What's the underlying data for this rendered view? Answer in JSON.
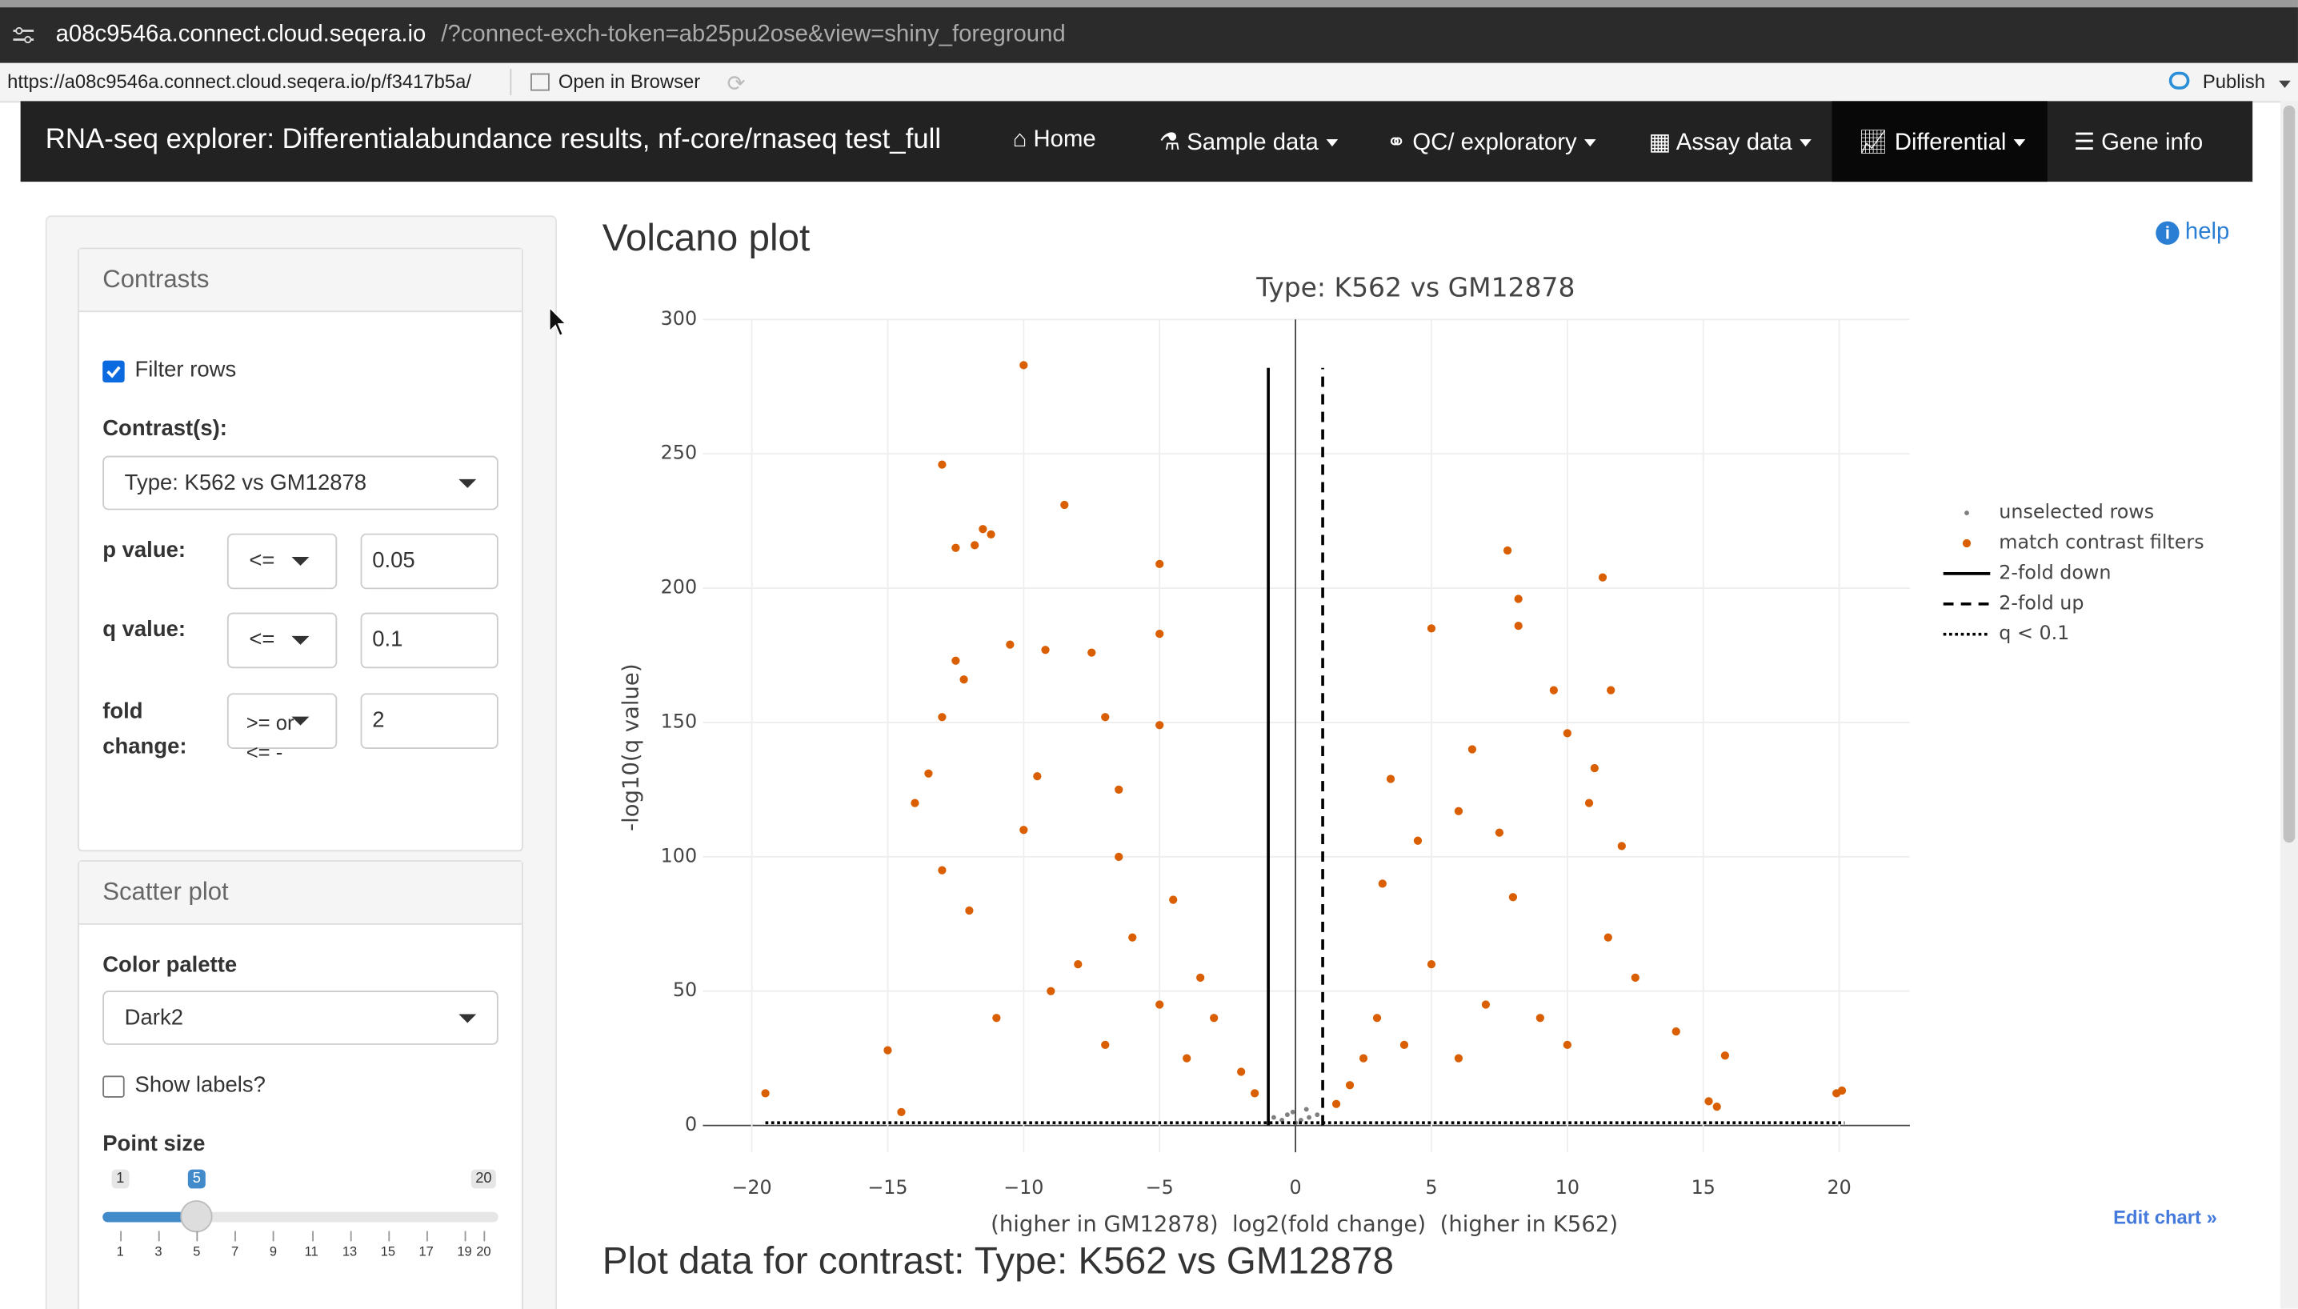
{
  "browser": {
    "url_host": "a08c9546a.connect.cloud.seqera.io",
    "url_rest": "/?connect-exch-token=ab25pu2ose&view=shiny_foreground",
    "content_url": "https://a08c9546a.connect.cloud.seqera.io/p/f3417b5a/",
    "open_in_browser": "Open in Browser",
    "publish": "Publish"
  },
  "navbar": {
    "title": "RNA-seq explorer: Differentialabundance results, nf-core/rnaseq test_full",
    "items": [
      "Home",
      "Sample data",
      "QC/ exploratory",
      "Assay data",
      "Differential",
      "Gene info"
    ]
  },
  "sidebar": {
    "contrasts": {
      "header": "Contrasts",
      "filter_rows": "Filter rows",
      "contrast_label": "Contrast(s):",
      "contrast_value": "Type: K562 vs GM12878",
      "p_label": "p value:",
      "p_op": "<=",
      "p_value": "0.05",
      "q_label": "q value:",
      "q_op": "<=",
      "q_value": "0.1",
      "fc_label": "fold change:",
      "fc_op": ">= or <= -",
      "fc_value": "2"
    },
    "scatter": {
      "header": "Scatter plot",
      "palette_label": "Color palette",
      "palette": "Dark2",
      "show_labels": "Show labels?",
      "point_size_label": "Point size",
      "slider": {
        "min": 1,
        "max": 20,
        "value": 5,
        "ticks": [
          1,
          3,
          5,
          7,
          9,
          11,
          13,
          15,
          17,
          19,
          20
        ]
      }
    }
  },
  "main": {
    "title": "Volcano plot",
    "help": "help",
    "edit_chart": "Edit chart »",
    "table_title": "Plot data for contrast: Type: K562 vs GM12878"
  },
  "chart_data": {
    "type": "scatter",
    "title": "Type: K562 vs GM12878",
    "x_label": "(higher in GM12878)  log2(fold change)  (higher in K562)",
    "y_label": "-log10(q value)",
    "xlim": [
      -21.8,
      22.6
    ],
    "ylim": [
      -10,
      300
    ],
    "xticks": [
      {
        "value": -20,
        "label": "−20"
      },
      {
        "value": -15,
        "label": "−15"
      },
      {
        "value": -10,
        "label": "−10"
      },
      {
        "value": -5,
        "label": "−5"
      },
      0,
      5,
      10,
      15,
      20
    ],
    "yticks": [
      0,
      50,
      100,
      150,
      200,
      250,
      300
    ],
    "grid": true,
    "series": [
      {
        "name": "unselected rows",
        "color": "#7f7f7f",
        "x": [
          -0.5,
          0,
          0.5,
          -0.3,
          0.4,
          -0.8,
          0.8,
          0.2,
          -0.1
        ],
        "y": [
          2,
          1,
          3,
          4,
          6,
          3,
          4,
          2,
          5
        ]
      },
      {
        "name": "match contrast filters",
        "color": "#d95f02",
        "x": [
          -10,
          -13,
          -8.5,
          -11.5,
          -11.2,
          -11.8,
          -12.5,
          -5,
          -5,
          -10.5,
          -9.2,
          -7.5,
          -12.5,
          -12.2,
          -13,
          -7,
          -5,
          -13.5,
          -14,
          -9.5,
          -6.5,
          -4.5,
          -13,
          -15,
          -19.5,
          -14.5,
          -6,
          -8,
          -3,
          -2,
          -1.5,
          -5,
          -9,
          -11,
          -7,
          -4,
          -10,
          -12,
          -3.5,
          -6.5,
          7.8,
          11.3,
          8.2,
          8.2,
          5,
          11.6,
          9.5,
          10,
          6.5,
          11,
          3.5,
          6,
          12,
          7.5,
          10.8,
          4.5,
          20.1,
          19.9,
          15.5,
          15.2,
          15.8,
          8,
          12.5,
          14,
          3,
          5,
          7,
          2,
          4,
          6,
          9,
          1.5,
          2.5,
          10,
          11.5,
          3.2
        ],
        "y": [
          283,
          246,
          231,
          222,
          220,
          216,
          215,
          209,
          183,
          179,
          177,
          176,
          173,
          166,
          152,
          152,
          149,
          131,
          120,
          130,
          125,
          84,
          95,
          28,
          12,
          5,
          70,
          60,
          40,
          20,
          12,
          45,
          50,
          40,
          30,
          25,
          110,
          80,
          55,
          100,
          214,
          204,
          196,
          186,
          185,
          162,
          162,
          146,
          140,
          133,
          129,
          117,
          104,
          109,
          120,
          106,
          13,
          12,
          7,
          9,
          26,
          85,
          55,
          35,
          40,
          60,
          45,
          15,
          30,
          25,
          40,
          8,
          25,
          30,
          70,
          90
        ]
      }
    ],
    "lines": [
      {
        "name": "2-fold down",
        "dash": "solid",
        "x": [
          -1,
          -1
        ],
        "y": [
          0,
          282
        ]
      },
      {
        "name": "2-fold up",
        "dash": "dashed",
        "x": [
          1,
          1
        ],
        "y": [
          0,
          282
        ]
      },
      {
        "name": "q < 0.1",
        "dash": "dotted",
        "x": [
          -19.5,
          20.2
        ],
        "y": [
          1,
          1
        ]
      }
    ]
  }
}
